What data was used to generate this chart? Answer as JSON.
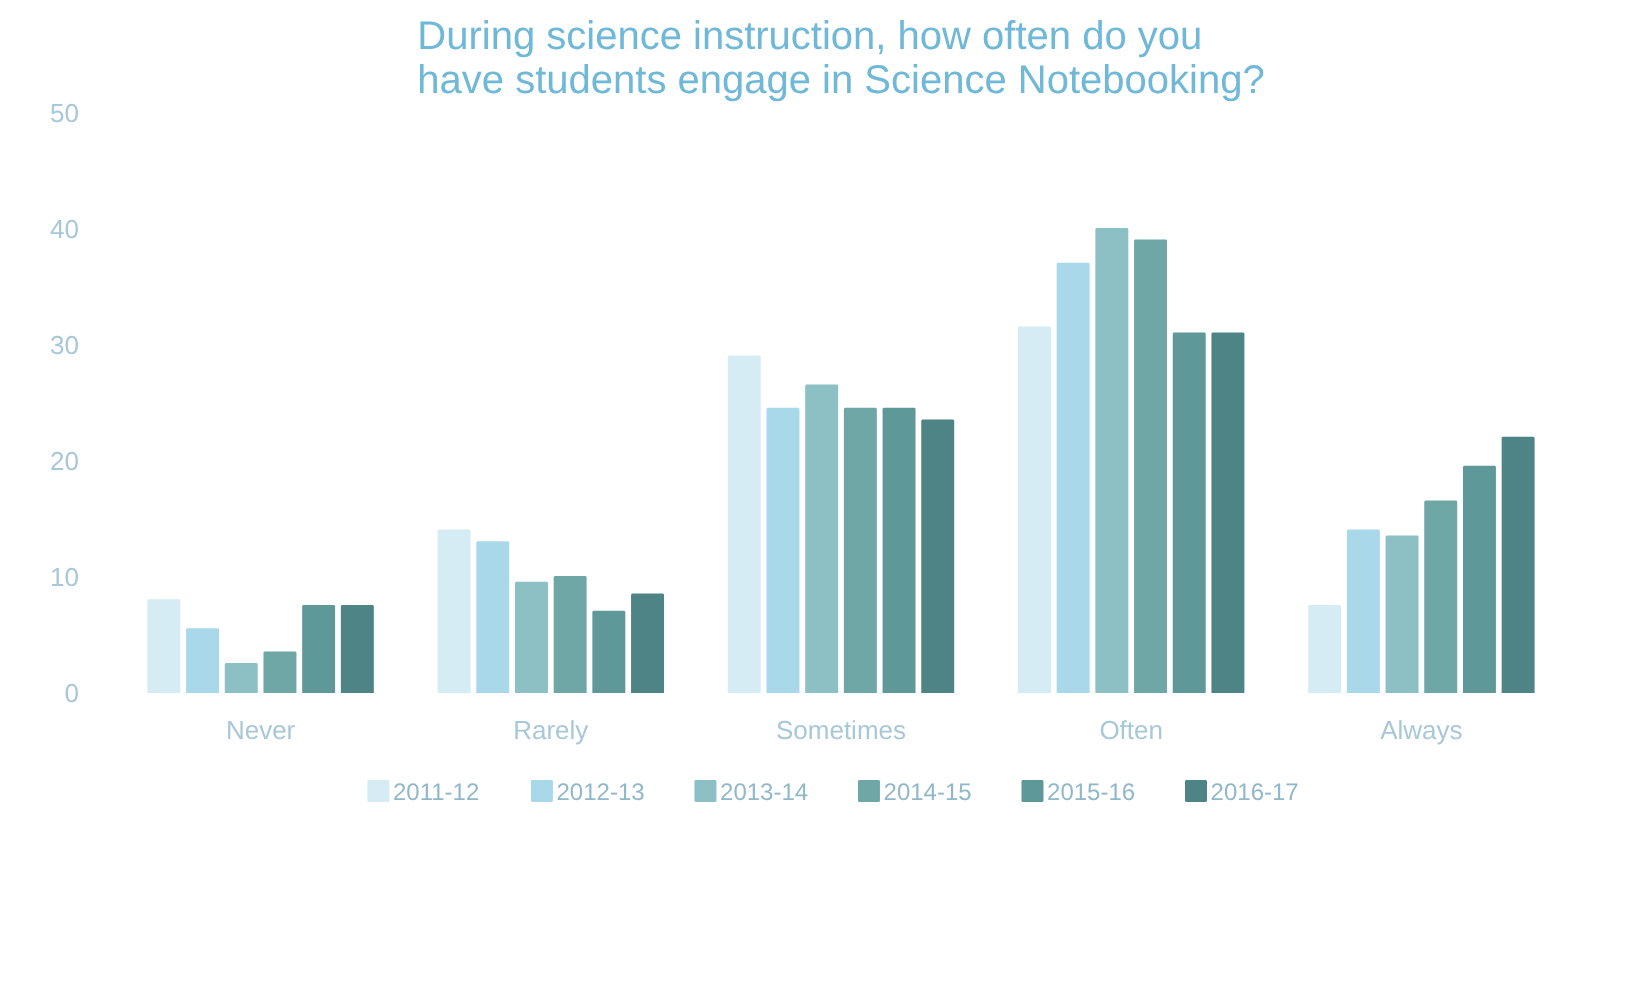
{
  "chart_data": {
    "type": "bar",
    "title": "During science instruction, how often do you\nhave students engage in Science Notebooking?",
    "categories": [
      "Never",
      "Rarely",
      "Sometimes",
      "Often",
      "Always"
    ],
    "series": [
      {
        "name": "2011-12",
        "color": "#d6ecf5",
        "values": [
          8,
          14,
          29,
          31.5,
          7.5
        ]
      },
      {
        "name": "2012-13",
        "color": "#a9d8ea",
        "values": [
          5.5,
          13,
          24.5,
          37,
          14
        ]
      },
      {
        "name": "2013-14",
        "color": "#8cc0c4",
        "values": [
          2.5,
          9.5,
          26.5,
          40,
          13.5
        ]
      },
      {
        "name": "2014-15",
        "color": "#6fa6a6",
        "values": [
          3.5,
          10,
          24.5,
          39,
          16.5
        ]
      },
      {
        "name": "2015-16",
        "color": "#5f9898",
        "values": [
          7.5,
          7,
          24.5,
          31,
          19.5
        ]
      },
      {
        "name": "2016-17",
        "color": "#4f8486",
        "values": [
          7.5,
          8.5,
          23.5,
          31,
          22
        ]
      }
    ],
    "ylim": [
      0,
      50
    ],
    "yticks": [
      0,
      10,
      20,
      30,
      40,
      50
    ],
    "grid": false,
    "legend": "bottom"
  }
}
